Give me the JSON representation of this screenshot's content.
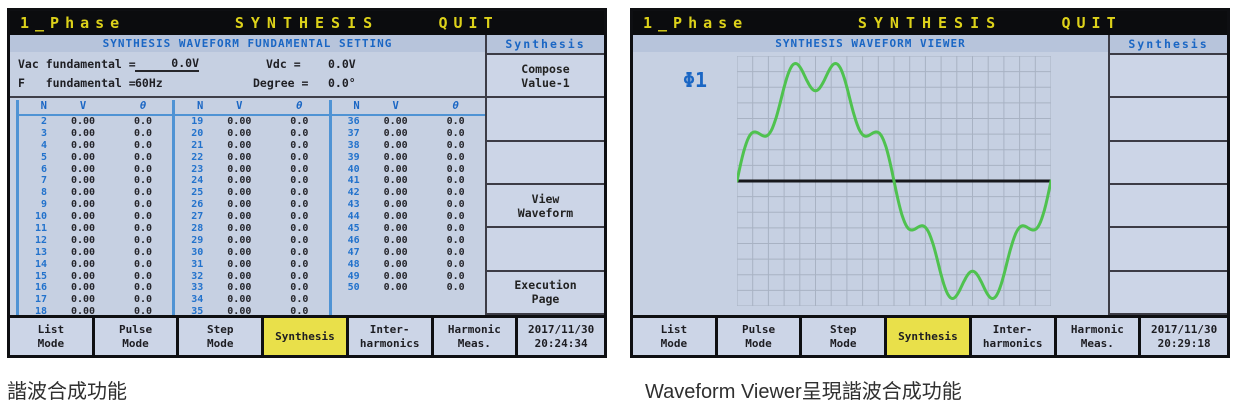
{
  "colors": {
    "header_text_yellow": "#ddd21a",
    "accent_blue": "#1a66c4",
    "active_tab_yellow": "#e9e04a",
    "waveform_green": "#4fc24f"
  },
  "captions": {
    "left": "諧波合成功能",
    "right": "Waveform Viewer呈現諧波合成功能"
  },
  "left_screen": {
    "titlebar": {
      "phase": "1_Phase",
      "title": "SYNTHESIS",
      "quit": "QUIT"
    },
    "panel_title": "SYNTHESIS WAVEFORM FUNDAMENTAL SETTING",
    "settings": {
      "vac_label": "Vac fundamental =",
      "vac_value": "0.0V",
      "vdc_label": "Vdc =",
      "vdc_value": "0.0V",
      "f_label": "F   fundamental =",
      "f_value": "60Hz",
      "degree_label": "Degree =",
      "degree_value": "0.0°"
    },
    "table": {
      "headers": [
        "N",
        "V",
        "θ"
      ],
      "groups": [
        {
          "rows": [
            [
              "2",
              "0.00",
              "0.0"
            ],
            [
              "3",
              "0.00",
              "0.0"
            ],
            [
              "4",
              "0.00",
              "0.0"
            ],
            [
              "5",
              "0.00",
              "0.0"
            ],
            [
              "6",
              "0.00",
              "0.0"
            ],
            [
              "7",
              "0.00",
              "0.0"
            ],
            [
              "8",
              "0.00",
              "0.0"
            ],
            [
              "9",
              "0.00",
              "0.0"
            ],
            [
              "10",
              "0.00",
              "0.0"
            ],
            [
              "11",
              "0.00",
              "0.0"
            ],
            [
              "12",
              "0.00",
              "0.0"
            ],
            [
              "13",
              "0.00",
              "0.0"
            ],
            [
              "14",
              "0.00",
              "0.0"
            ],
            [
              "15",
              "0.00",
              "0.0"
            ],
            [
              "16",
              "0.00",
              "0.0"
            ],
            [
              "17",
              "0.00",
              "0.0"
            ],
            [
              "18",
              "0.00",
              "0.0"
            ]
          ]
        },
        {
          "rows": [
            [
              "19",
              "0.00",
              "0.0"
            ],
            [
              "20",
              "0.00",
              "0.0"
            ],
            [
              "21",
              "0.00",
              "0.0"
            ],
            [
              "22",
              "0.00",
              "0.0"
            ],
            [
              "23",
              "0.00",
              "0.0"
            ],
            [
              "24",
              "0.00",
              "0.0"
            ],
            [
              "25",
              "0.00",
              "0.0"
            ],
            [
              "26",
              "0.00",
              "0.0"
            ],
            [
              "27",
              "0.00",
              "0.0"
            ],
            [
              "28",
              "0.00",
              "0.0"
            ],
            [
              "29",
              "0.00",
              "0.0"
            ],
            [
              "30",
              "0.00",
              "0.0"
            ],
            [
              "31",
              "0.00",
              "0.0"
            ],
            [
              "32",
              "0.00",
              "0.0"
            ],
            [
              "33",
              "0.00",
              "0.0"
            ],
            [
              "34",
              "0.00",
              "0.0"
            ],
            [
              "35",
              "0.00",
              "0.0"
            ]
          ]
        },
        {
          "rows": [
            [
              "36",
              "0.00",
              "0.0"
            ],
            [
              "37",
              "0.00",
              "0.0"
            ],
            [
              "38",
              "0.00",
              "0.0"
            ],
            [
              "39",
              "0.00",
              "0.0"
            ],
            [
              "40",
              "0.00",
              "0.0"
            ],
            [
              "41",
              "0.00",
              "0.0"
            ],
            [
              "42",
              "0.00",
              "0.0"
            ],
            [
              "43",
              "0.00",
              "0.0"
            ],
            [
              "44",
              "0.00",
              "0.0"
            ],
            [
              "45",
              "0.00",
              "0.0"
            ],
            [
              "46",
              "0.00",
              "0.0"
            ],
            [
              "47",
              "0.00",
              "0.0"
            ],
            [
              "48",
              "0.00",
              "0.0"
            ],
            [
              "49",
              "0.00",
              "0.0"
            ],
            [
              "50",
              "0.00",
              "0.0"
            ]
          ]
        }
      ]
    },
    "softkeys": {
      "label": "Synthesis",
      "buttons": [
        [
          "Compose",
          "Value-1"
        ],
        [],
        [],
        [
          "View",
          "Waveform"
        ],
        [],
        [
          "Execution",
          "Page"
        ]
      ]
    },
    "bottom_tabs": [
      {
        "lines": [
          "List",
          "Mode"
        ],
        "active": false
      },
      {
        "lines": [
          "Pulse",
          "Mode"
        ],
        "active": false
      },
      {
        "lines": [
          "Step",
          "Mode"
        ],
        "active": false
      },
      {
        "lines": [
          "Synthesis"
        ],
        "active": true
      },
      {
        "lines": [
          "Inter-",
          "harmonics"
        ],
        "active": false
      },
      {
        "lines": [
          "Harmonic",
          "Meas."
        ],
        "active": false
      }
    ],
    "timestamp": [
      "2017/11/30",
      "20:24:34"
    ]
  },
  "right_screen": {
    "titlebar": {
      "phase": "1_Phase",
      "title": "SYNTHESIS",
      "quit": "QUIT"
    },
    "panel_title": "SYNTHESIS WAVEFORM VIEWER",
    "phase_label": "Φ1",
    "softkeys": {
      "label": "Synthesis",
      "buttons": [
        [],
        [],
        [],
        [],
        [],
        []
      ]
    },
    "bottom_tabs": [
      {
        "lines": [
          "List",
          "Mode"
        ],
        "active": false
      },
      {
        "lines": [
          "Pulse",
          "Mode"
        ],
        "active": false
      },
      {
        "lines": [
          "Step",
          "Mode"
        ],
        "active": false
      },
      {
        "lines": [
          "Synthesis"
        ],
        "active": true
      },
      {
        "lines": [
          "Inter-",
          "harmonics"
        ],
        "active": false
      },
      {
        "lines": [
          "Harmonic",
          "Meas."
        ],
        "active": false
      }
    ],
    "timestamp": [
      "2017/11/30",
      "20:29:18"
    ]
  },
  "chart_data": {
    "type": "line",
    "title": "SYNTHESIS WAVEFORM VIEWER",
    "x_unit": "degrees",
    "x_range": [
      0,
      360
    ],
    "y_range_normalized": [
      -1,
      1
    ],
    "baseline": 0,
    "grid": {
      "on": true,
      "cols": 20,
      "rows": 16
    },
    "peak_fraction_of_halfheight": 0.94,
    "series": [
      {
        "name": "Φ1",
        "color": "#4fc24f",
        "formula": "y(t) = sin(t) + 0.17·sin(7t), normalized to peak",
        "harmonics": [
          {
            "n": 1,
            "amplitude": 1.0
          },
          {
            "n": 7,
            "amplitude": 0.17
          }
        ]
      }
    ]
  }
}
